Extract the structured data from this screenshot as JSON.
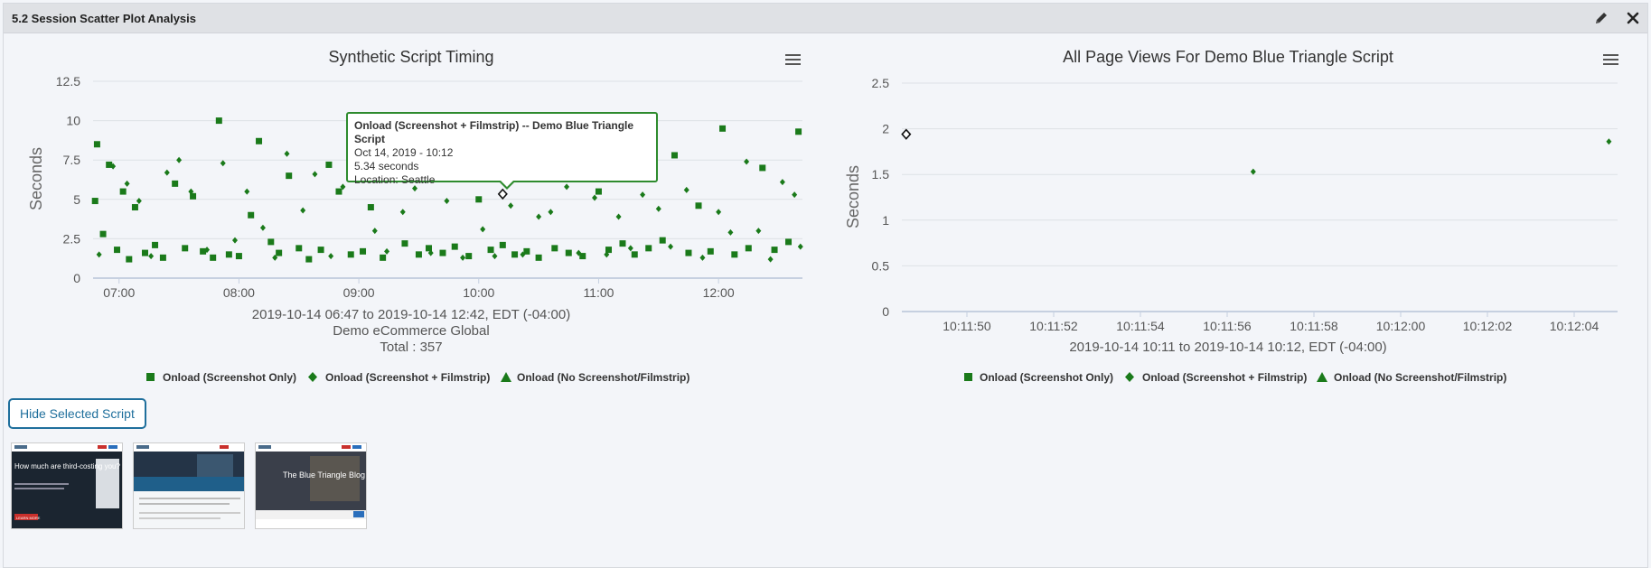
{
  "panel": {
    "title": "5.2 Session Scatter Plot Analysis",
    "edit_icon": "pencil-icon",
    "close_icon": "close-icon"
  },
  "left_chart": {
    "title": "Synthetic Script Timing",
    "menu_icon": "hamburger-menu-icon",
    "ylabel": "Seconds",
    "y_ticks": [
      "0",
      "2.5",
      "5",
      "7.5",
      "10",
      "12.5"
    ],
    "x_ticks": [
      "07:00",
      "08:00",
      "09:00",
      "10:00",
      "11:00",
      "12:00"
    ],
    "subtitle_lines": [
      "2019-10-14 06:47 to 2019-10-14 12:42, EDT (-04:00)",
      "Demo eCommerce Global",
      "Total : 357"
    ],
    "legend": [
      "Onload (Screenshot Only)",
      "Onload (Screenshot + Filmstrip)",
      "Onload (No Screenshot/Filmstrip)"
    ]
  },
  "tooltip": {
    "title": "Onload (Screenshot + Filmstrip) -- Demo Blue Triangle Script",
    "date": "Oct 14, 2019 - 10:12",
    "value": "5.34 seconds",
    "location": "Location: Seattle"
  },
  "right_chart": {
    "title": "All Page Views For Demo Blue Triangle Script",
    "menu_icon": "hamburger-menu-icon",
    "ylabel": "Seconds",
    "y_ticks": [
      "0",
      "0.5",
      "1",
      "1.5",
      "2",
      "2.5"
    ],
    "x_ticks": [
      "10:11:50",
      "10:11:52",
      "10:11:54",
      "10:11:56",
      "10:11:58",
      "10:12:00",
      "10:12:02",
      "10:12:04"
    ],
    "subtitle_lines": [
      "2019-10-14 10:11 to 2019-10-14 10:12, EDT (-04:00)"
    ],
    "legend": [
      "Onload (Screenshot Only)",
      "Onload (Screenshot + Filmstrip)",
      "Onload (No Screenshot/Filmstrip)"
    ]
  },
  "buttons": {
    "hide_selected_script": "Hide Selected Script"
  },
  "thumbnails": [
    {
      "headline": "How much are third-costing you?",
      "button": "LEARN MORE"
    },
    {
      "headline": "",
      "button": ""
    },
    {
      "headline": "The Blue Triangle Blog",
      "button": ""
    }
  ],
  "colors": {
    "series_green": "#1a7a1a",
    "highlight_border": "#2e8b2e",
    "button_blue": "#1f6f9c"
  },
  "chart_data": [
    {
      "type": "scatter",
      "title": "Synthetic Script Timing",
      "ylabel": "Seconds",
      "ylim": [
        0,
        12.5
      ],
      "xlim": [
        "06:47",
        "12:42"
      ],
      "total": 357,
      "series": [
        {
          "name": "Onload (Screenshot Only)",
          "marker": "square",
          "points": [
            [
              "06:48",
              4.9
            ],
            [
              "06:49",
              8.5
            ],
            [
              "06:52",
              2.8
            ],
            [
              "06:55",
              7.2
            ],
            [
              "06:59",
              1.8
            ],
            [
              "07:02",
              5.5
            ],
            [
              "07:05",
              1.2
            ],
            [
              "07:08",
              4.5
            ],
            [
              "07:13",
              1.6
            ],
            [
              "07:18",
              2.1
            ],
            [
              "07:22",
              1.3
            ],
            [
              "07:28",
              6.0
            ],
            [
              "07:33",
              1.9
            ],
            [
              "07:37",
              5.2
            ],
            [
              "07:42",
              1.7
            ],
            [
              "07:47",
              1.3
            ],
            [
              "07:50",
              10.0
            ],
            [
              "07:55",
              1.5
            ],
            [
              "08:00",
              1.4
            ],
            [
              "08:06",
              4.0
            ],
            [
              "08:10",
              8.7
            ],
            [
              "08:16",
              2.3
            ],
            [
              "08:20",
              1.6
            ],
            [
              "08:25",
              6.5
            ],
            [
              "08:30",
              1.9
            ],
            [
              "08:35",
              1.2
            ],
            [
              "08:41",
              1.8
            ],
            [
              "08:45",
              7.2
            ],
            [
              "08:50",
              5.5
            ],
            [
              "08:56",
              1.5
            ],
            [
              "09:02",
              1.7
            ],
            [
              "09:06",
              4.5
            ],
            [
              "09:12",
              1.3
            ],
            [
              "09:18",
              6.8
            ],
            [
              "09:23",
              2.2
            ],
            [
              "09:30",
              1.5
            ],
            [
              "09:35",
              1.9
            ],
            [
              "09:42",
              1.6
            ],
            [
              "09:48",
              2.0
            ],
            [
              "09:55",
              1.4
            ],
            [
              "10:00",
              5.0
            ],
            [
              "10:06",
              1.8
            ],
            [
              "10:12",
              2.1
            ],
            [
              "10:18",
              1.5
            ],
            [
              "10:24",
              1.7
            ],
            [
              "10:30",
              1.3
            ],
            [
              "10:38",
              1.9
            ],
            [
              "10:45",
              1.6
            ],
            [
              "10:52",
              1.4
            ],
            [
              "11:00",
              5.5
            ],
            [
              "11:05",
              1.8
            ],
            [
              "11:12",
              2.2
            ],
            [
              "11:18",
              1.5
            ],
            [
              "11:25",
              1.9
            ],
            [
              "11:32",
              2.4
            ],
            [
              "11:38",
              7.8
            ],
            [
              "11:45",
              1.6
            ],
            [
              "11:50",
              4.6
            ],
            [
              "11:56",
              1.7
            ],
            [
              "12:02",
              9.5
            ],
            [
              "12:08",
              1.5
            ],
            [
              "12:15",
              1.9
            ],
            [
              "12:22",
              7.0
            ],
            [
              "12:28",
              1.8
            ],
            [
              "12:35",
              2.3
            ],
            [
              "12:40",
              9.3
            ]
          ]
        },
        {
          "name": "Onload (Screenshot + Filmstrip)",
          "marker": "diamond",
          "points": [
            [
              "06:50",
              1.5
            ],
            [
              "06:57",
              7.1
            ],
            [
              "07:04",
              6.0
            ],
            [
              "07:10",
              4.9
            ],
            [
              "07:16",
              1.4
            ],
            [
              "07:24",
              6.7
            ],
            [
              "07:30",
              7.5
            ],
            [
              "07:36",
              5.5
            ],
            [
              "07:44",
              1.8
            ],
            [
              "07:52",
              7.3
            ],
            [
              "07:58",
              2.4
            ],
            [
              "08:04",
              5.5
            ],
            [
              "08:12",
              3.2
            ],
            [
              "08:18",
              1.3
            ],
            [
              "08:24",
              7.9
            ],
            [
              "08:32",
              4.3
            ],
            [
              "08:38",
              6.6
            ],
            [
              "08:46",
              1.4
            ],
            [
              "08:52",
              5.8
            ],
            [
              "09:00",
              8.5
            ],
            [
              "09:08",
              3.0
            ],
            [
              "09:14",
              1.7
            ],
            [
              "09:22",
              4.2
            ],
            [
              "09:28",
              5.7
            ],
            [
              "09:36",
              1.6
            ],
            [
              "09:44",
              4.9
            ],
            [
              "09:52",
              1.3
            ],
            [
              "10:02",
              3.1
            ],
            [
              "10:08",
              1.4
            ],
            [
              "10:12",
              5.34
            ],
            [
              "10:16",
              4.6
            ],
            [
              "10:22",
              1.5
            ],
            [
              "10:30",
              3.9
            ],
            [
              "10:36",
              4.2
            ],
            [
              "10:44",
              5.8
            ],
            [
              "10:50",
              1.6
            ],
            [
              "10:58",
              5.1
            ],
            [
              "11:04",
              1.5
            ],
            [
              "11:10",
              3.9
            ],
            [
              "11:16",
              1.9
            ],
            [
              "11:22",
              5.3
            ],
            [
              "11:30",
              4.4
            ],
            [
              "11:36",
              2.0
            ],
            [
              "11:44",
              5.6
            ],
            [
              "11:52",
              1.3
            ],
            [
              "12:00",
              4.2
            ],
            [
              "12:06",
              2.9
            ],
            [
              "12:14",
              7.4
            ],
            [
              "12:20",
              3.0
            ],
            [
              "12:26",
              1.2
            ],
            [
              "12:32",
              6.1
            ],
            [
              "12:38",
              5.3
            ],
            [
              "12:41",
              2.0
            ]
          ]
        },
        {
          "name": "Onload (No Screenshot/Filmstrip)",
          "marker": "triangle",
          "points": []
        }
      ]
    },
    {
      "type": "scatter",
      "title": "All Page Views For Demo Blue Triangle Script",
      "ylabel": "Seconds",
      "ylim": [
        0,
        2.5
      ],
      "xlim": [
        "10:11:48.5",
        "10:12:05"
      ],
      "series": [
        {
          "name": "Onload (Screenshot Only)",
          "marker": "square",
          "points": []
        },
        {
          "name": "Onload (Screenshot + Filmstrip)",
          "marker": "diamond",
          "points": [
            [
              "10:11:48.6",
              1.94
            ],
            [
              "10:11:56.6",
              1.53
            ],
            [
              "10:12:04.8",
              1.86
            ]
          ]
        },
        {
          "name": "Onload (No Screenshot/Filmstrip)",
          "marker": "triangle",
          "points": []
        }
      ]
    }
  ]
}
